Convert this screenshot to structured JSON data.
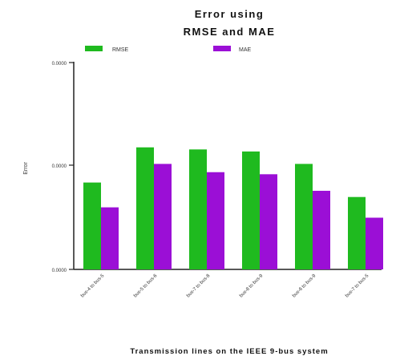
{
  "chart_data": {
    "type": "bar",
    "title_lines": [
      "Error using",
      "RMSE and MAE"
    ],
    "xlabel": "Transmission lines on the IEEE 9-bus system",
    "ylabel": "Error",
    "ytick_labels": [
      "0.0000",
      "0.0000",
      "0.0000"
    ],
    "ylim": [
      0,
      1
    ],
    "categories": [
      "bus-4 to bus-5",
      "bus-5 to bus-6",
      "bus-7 to bus-8",
      "bus-8 to bus-9",
      "bus-6 to bus-9",
      "bus-7 to bus-5"
    ],
    "series": [
      {
        "name": "RMSE",
        "color": "#1fba1f",
        "values": [
          0.42,
          0.59,
          0.58,
          0.57,
          0.51,
          0.35
        ]
      },
      {
        "name": "MAE",
        "color": "#9b0fd6",
        "values": [
          0.3,
          0.51,
          0.47,
          0.46,
          0.38,
          0.25
        ]
      }
    ],
    "legend": "top",
    "grid": false
  }
}
